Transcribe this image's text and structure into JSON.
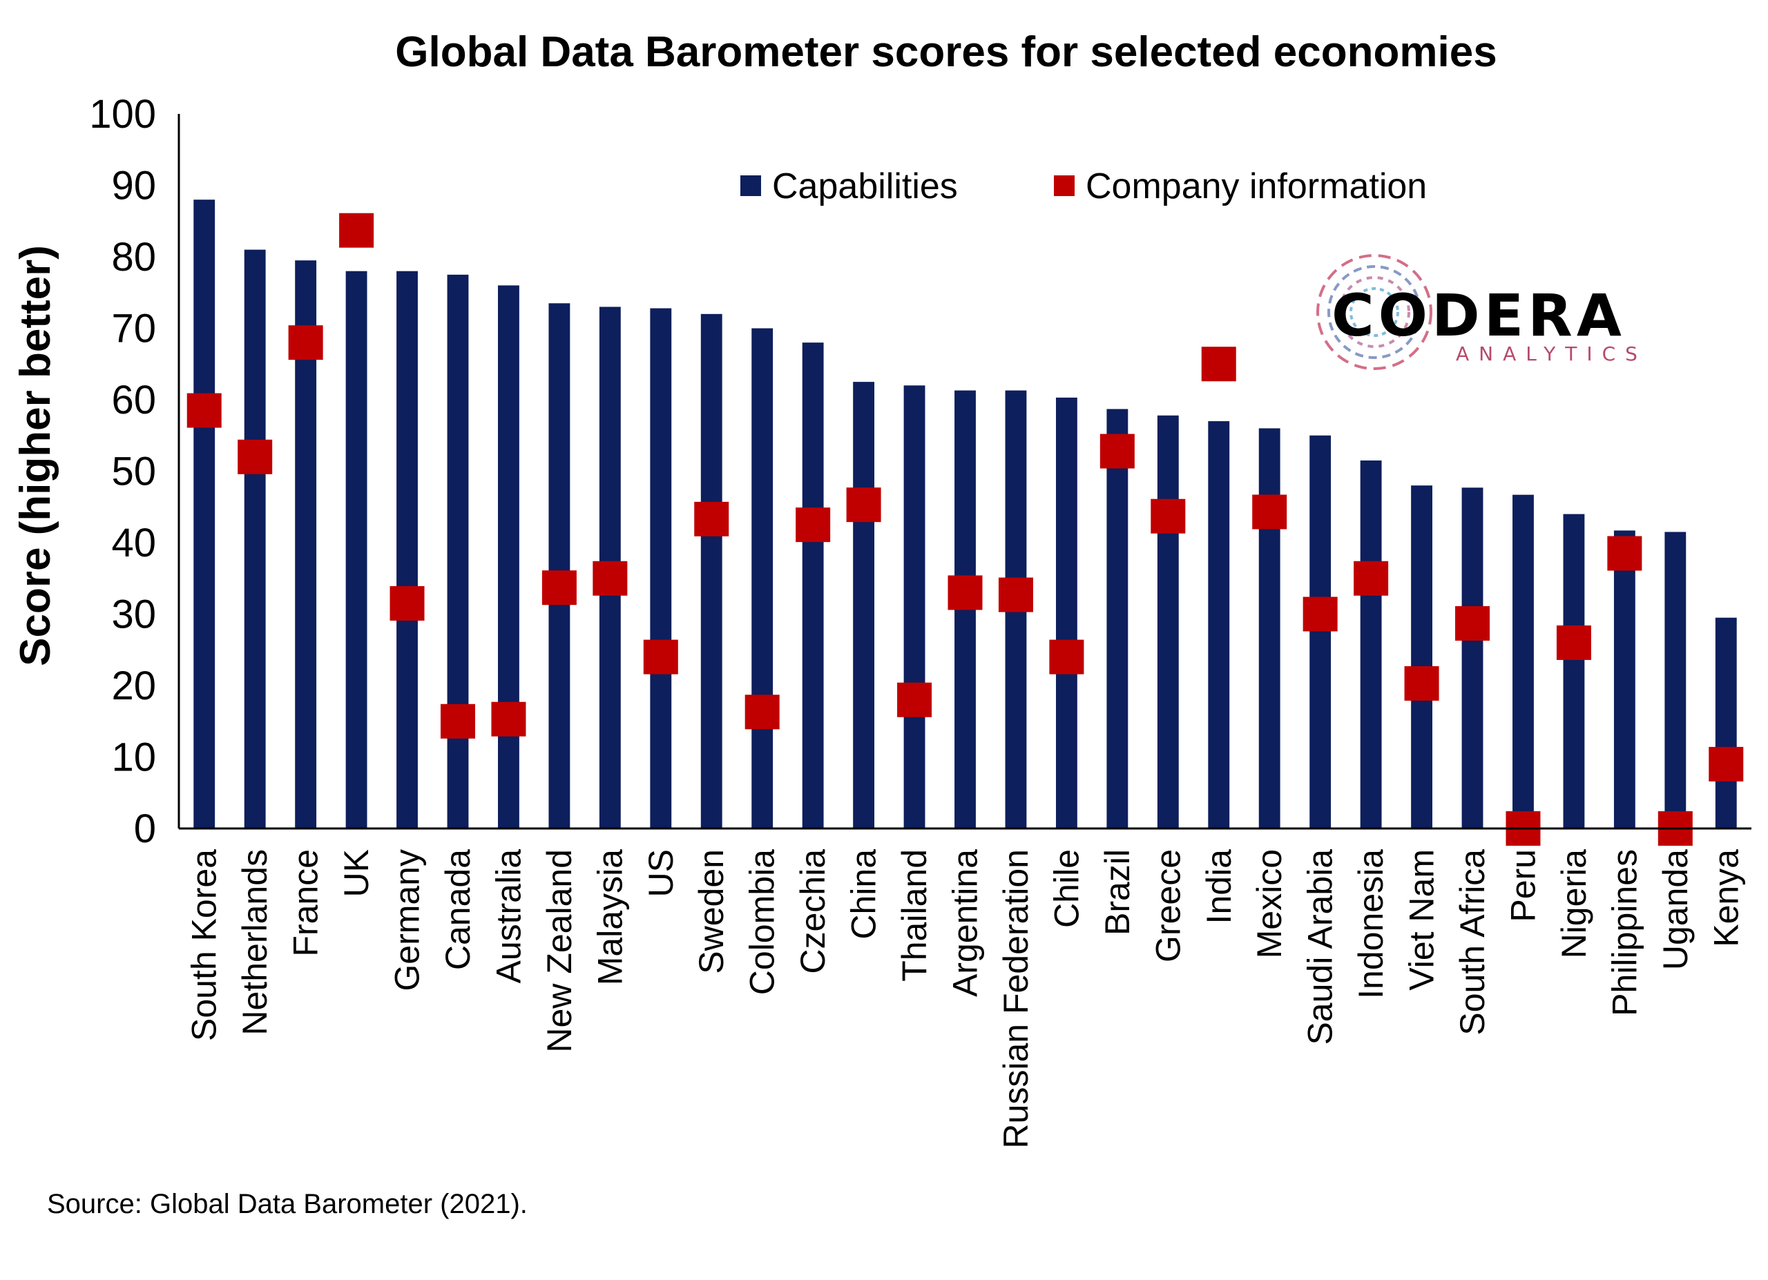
{
  "chart_data": {
    "type": "bar",
    "title": "Global Data Barometer scores for selected economies",
    "ylabel": "Score (higher better)",
    "xlabel": "",
    "ylim": [
      0,
      100
    ],
    "yticks": [
      0,
      10,
      20,
      30,
      40,
      50,
      60,
      70,
      80,
      90,
      100
    ],
    "grid": false,
    "legend_position": "top-right",
    "categories": [
      "South Korea",
      "Netherlands",
      "France",
      "UK",
      "Germany",
      "Canada",
      "Australia",
      "New Zealand",
      "Malaysia",
      "US",
      "Sweden",
      "Colombia",
      "Czechia",
      "China",
      "Thailand",
      "Argentina",
      "Russian Federation",
      "Chile",
      "Brazil",
      "Greece",
      "India",
      "Mexico",
      "Saudi Arabia",
      "Indonesia",
      "Viet Nam",
      "South Africa",
      "Peru",
      "Nigeria",
      "Philippines",
      "Uganda",
      "Kenya"
    ],
    "series": [
      {
        "name": "Capabilities",
        "type": "bar",
        "color": "#0d1f5c",
        "values": [
          88,
          81,
          79.5,
          78,
          78,
          77.5,
          76,
          73.5,
          73,
          72.8,
          72,
          70,
          68,
          62.5,
          62,
          61.3,
          61.3,
          60.3,
          58.7,
          57.8,
          57,
          56,
          55,
          51.5,
          48,
          47.7,
          46.7,
          44,
          41.7,
          41.5,
          29.5
        ]
      },
      {
        "name": "Company information",
        "type": "marker",
        "color": "#c00000",
        "values": [
          58.5,
          52,
          68,
          83.7,
          31.5,
          15,
          15.3,
          33.7,
          35,
          24,
          43.3,
          16.3,
          42.5,
          45.3,
          18,
          33,
          32.7,
          24,
          52.8,
          43.7,
          65,
          44.3,
          30,
          35,
          20.3,
          28.7,
          0,
          26,
          38.5,
          0,
          9
        ]
      }
    ],
    "source": "Source: Global Data Barometer (2021)."
  },
  "logo": {
    "main": "CODERA",
    "sub": "ANALYTICS",
    "sub_color": "#b84a6a"
  }
}
